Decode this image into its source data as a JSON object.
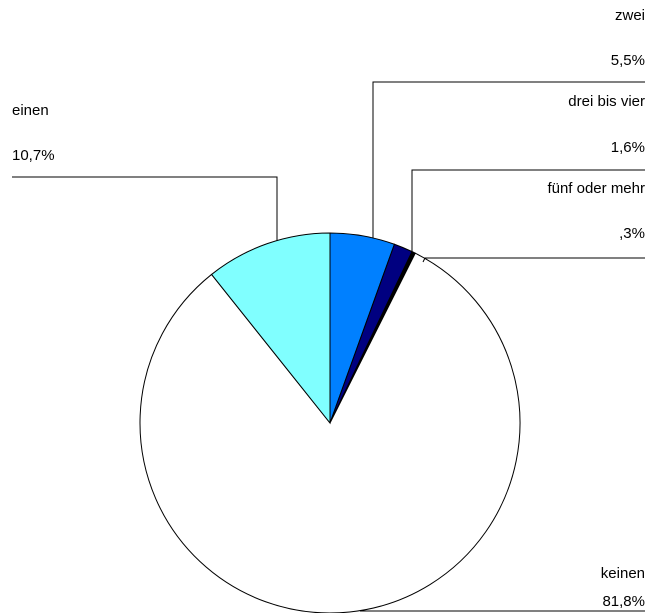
{
  "chart_data": {
    "type": "pie",
    "categories": [
      "zwei",
      "drei bis vier",
      "fünf oder mehr",
      "keinen",
      "einen"
    ],
    "values": [
      5.5,
      1.6,
      0.3,
      81.8,
      10.7
    ],
    "value_labels": [
      "5,5%",
      "1,6%",
      ",3%",
      "81,8%",
      "10,7%"
    ],
    "colors": [
      "#0080ff",
      "#000080",
      "#000000",
      "#ffffff",
      "#80ffff"
    ]
  }
}
